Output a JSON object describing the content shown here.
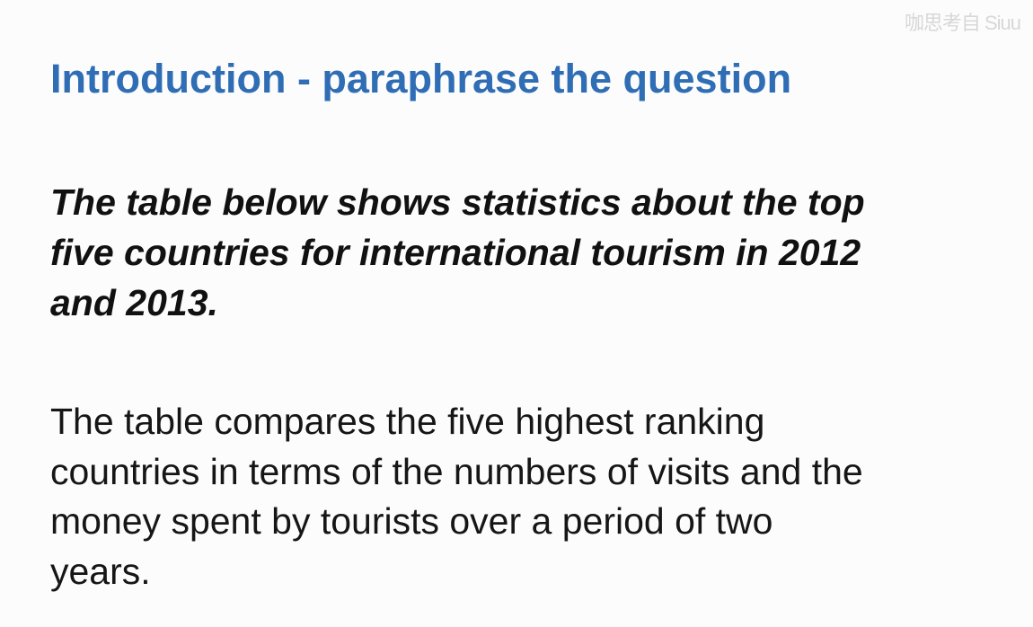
{
  "watermark": "咖思考自 Siuu",
  "heading": "Introduction - paraphrase the question",
  "question_lines": [
    "The table below shows statistics about the top",
    "five countries for international tourism in 2012",
    "and 2013."
  ],
  "answer_lines": [
    "The table compares the five highest ranking",
    "countries in terms of the numbers of visits and the",
    "money spent by tourists over a period of two",
    "years."
  ],
  "colors": {
    "heading": "#2f6db5",
    "text": "#111111",
    "background": "#fcfcfc"
  }
}
